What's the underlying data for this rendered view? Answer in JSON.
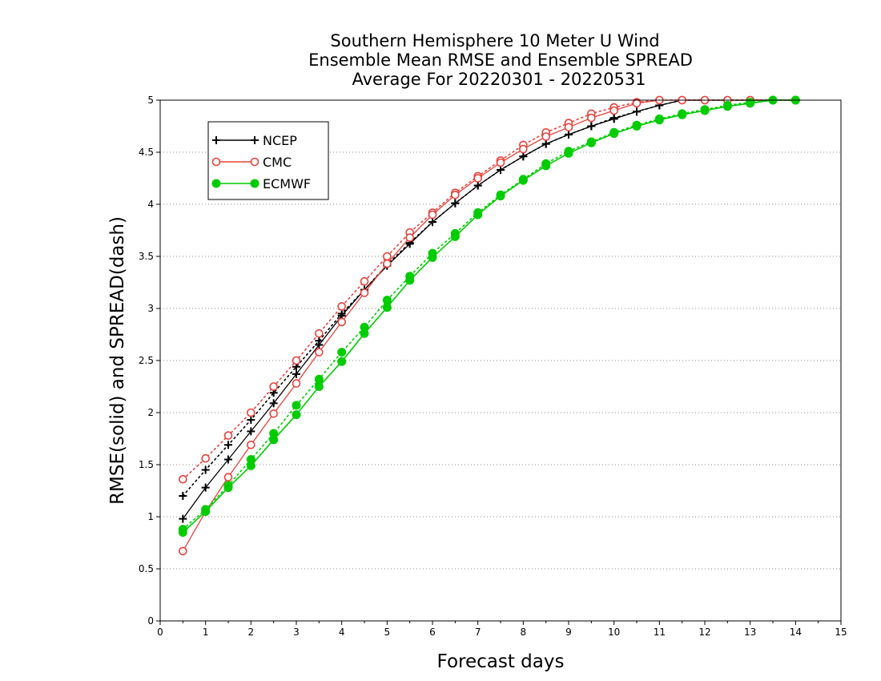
{
  "chart_data": {
    "type": "line",
    "title": [
      "Southern Hemisphere 10 Meter U Wind",
      "Ensemble Mean RMSE and Ensemble SPREAD",
      "Average For 20220301 - 20220531"
    ],
    "xlabel": "Forecast days",
    "ylabel": "RMSE(solid) and SPREAD(dash)",
    "xlim": [
      0,
      15
    ],
    "ylim": [
      0,
      5
    ],
    "xticks": [
      "0",
      "1",
      "2",
      "3",
      "4",
      "5",
      "6",
      "7",
      "8",
      "9",
      "10",
      "11",
      "12",
      "13",
      "14",
      "15"
    ],
    "yticks": [
      "0",
      "0.5",
      "1",
      "1.5",
      "2",
      "2.5",
      "3",
      "3.5",
      "4",
      "4.5",
      "5"
    ],
    "grid": "horizontal dotted",
    "legend_position": "top-left",
    "x": [
      0.5,
      1,
      1.5,
      2,
      2.5,
      3,
      3.5,
      4,
      4.5,
      5,
      5.5,
      6,
      6.5,
      7,
      7.5,
      8,
      8.5,
      9,
      9.5,
      10,
      10.5,
      11,
      11.5,
      12,
      12.5,
      13,
      13.5,
      14
    ],
    "series": [
      {
        "name": "NCEP",
        "color": "#000000",
        "marker": "plus",
        "rmse": [
          0.98,
          1.28,
          1.55,
          1.82,
          2.09,
          2.37,
          2.65,
          2.93,
          3.18,
          3.41,
          3.62,
          3.83,
          4.01,
          4.18,
          4.33,
          4.46,
          4.58,
          4.67,
          4.75,
          4.82,
          4.89,
          4.95,
          5.0,
          5.0,
          5.0,
          5.0,
          5.0,
          5.0
        ],
        "spread": [
          1.2,
          1.45,
          1.69,
          1.93,
          2.19,
          2.44,
          2.69,
          2.95,
          3.18,
          3.42,
          3.63,
          3.83,
          4.01,
          4.18,
          4.33,
          4.46,
          4.58,
          4.67,
          4.75,
          4.83,
          4.89,
          4.95,
          5.0,
          5.0,
          5.0,
          5.0,
          5.0,
          5.0
        ]
      },
      {
        "name": "CMC",
        "color": "#e8423c",
        "marker": "circle",
        "rmse": [
          0.67,
          1.05,
          1.38,
          1.69,
          1.99,
          2.28,
          2.58,
          2.87,
          3.15,
          3.43,
          3.68,
          3.9,
          4.09,
          4.25,
          4.4,
          4.53,
          4.65,
          4.74,
          4.83,
          4.9,
          4.97,
          5.0,
          5.0,
          5.0,
          5.0,
          5.0,
          5.0,
          5.0
        ],
        "spread": [
          1.36,
          1.56,
          1.78,
          2.0,
          2.25,
          2.5,
          2.76,
          3.02,
          3.26,
          3.5,
          3.73,
          3.92,
          4.11,
          4.27,
          4.42,
          4.57,
          4.69,
          4.78,
          4.87,
          4.93,
          4.98,
          5.0,
          5.0,
          5.0,
          5.0,
          5.0,
          5.0,
          5.0
        ]
      },
      {
        "name": "ECMWF",
        "color": "#00cc00",
        "marker": "filled-circle",
        "rmse": [
          0.85,
          1.05,
          1.28,
          1.49,
          1.74,
          1.98,
          2.25,
          2.49,
          2.76,
          3.01,
          3.27,
          3.49,
          3.69,
          3.9,
          4.08,
          4.23,
          4.37,
          4.49,
          4.59,
          4.68,
          4.75,
          4.81,
          4.86,
          4.9,
          4.94,
          4.97,
          5.0,
          5.0
        ],
        "spread": [
          0.88,
          1.07,
          1.3,
          1.55,
          1.8,
          2.07,
          2.32,
          2.58,
          2.82,
          3.08,
          3.31,
          3.53,
          3.72,
          3.92,
          4.09,
          4.24,
          4.39,
          4.51,
          4.6,
          4.69,
          4.76,
          4.82,
          4.87,
          4.91,
          4.95,
          4.98,
          5.0,
          5.0
        ]
      }
    ]
  }
}
